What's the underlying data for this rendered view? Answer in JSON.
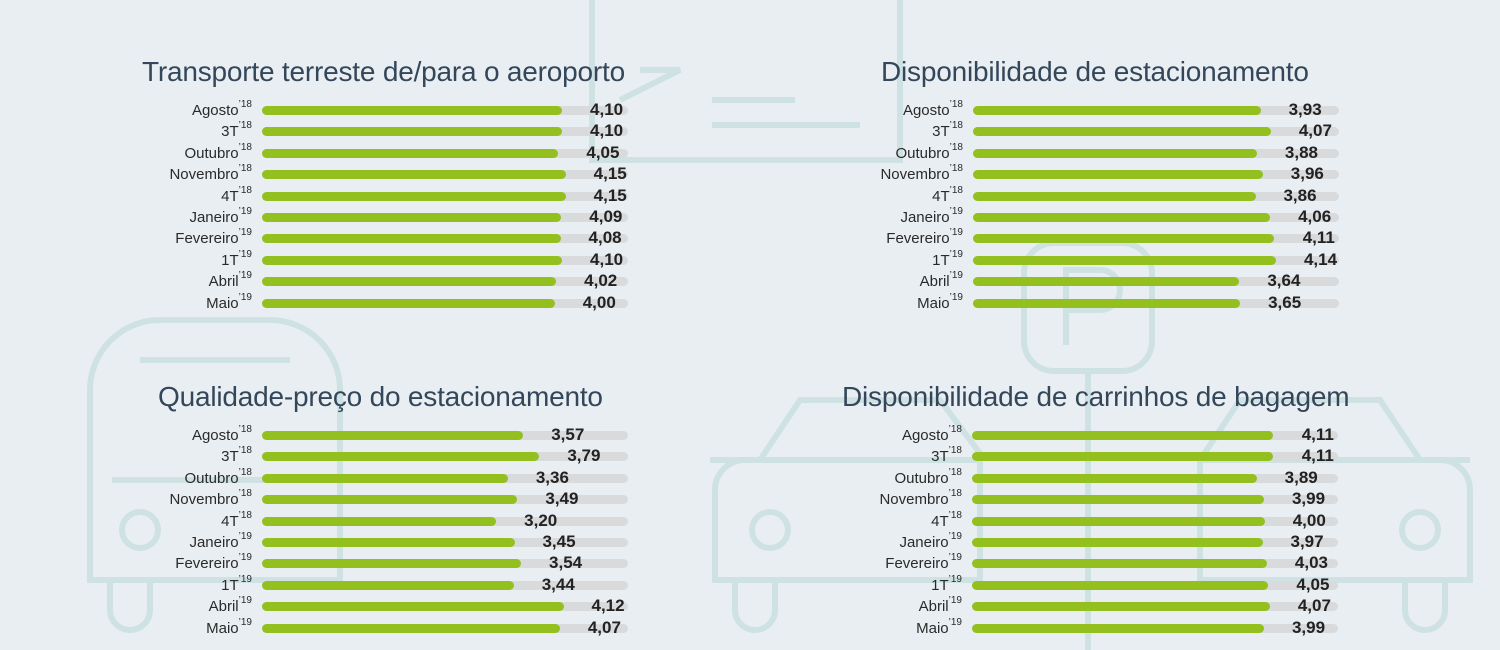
{
  "scale_max": 5,
  "colors": {
    "bar": "#93c01f",
    "track": "#d9dadb",
    "background": "#e9eef2",
    "title": "#34475a",
    "icon_outline": "#cfe2e3"
  },
  "background_icons": [
    "ticket-plane-icon",
    "parking-sign-icon",
    "car-icon",
    "car-icon",
    "car-icon",
    "bus-icon"
  ],
  "chart_data": [
    {
      "type": "bar",
      "title": "Transporte terreste de/para o aeroporto",
      "categories": [
        [
          "Agosto",
          "’18"
        ],
        [
          "3T",
          "’18"
        ],
        [
          "Outubro",
          "’18"
        ],
        [
          "Novembro",
          "’18"
        ],
        [
          "4T",
          "’18"
        ],
        [
          "Janeiro",
          "’19"
        ],
        [
          "Fevereiro",
          "’19"
        ],
        [
          "1T",
          "’19"
        ],
        [
          "Abril",
          "’19"
        ],
        [
          "Maio",
          "’19"
        ]
      ],
      "values": [
        "4,10",
        "4,10",
        "4,05",
        "4,15",
        "4,15",
        "4,09",
        "4,08",
        "4,10",
        "4,02",
        "4,00"
      ],
      "xlim": [
        0,
        5
      ]
    },
    {
      "type": "bar",
      "title": "Disponibilidade de estacionamento",
      "categories": [
        [
          "Agosto",
          "’18"
        ],
        [
          "3T",
          "’18"
        ],
        [
          "Outubro",
          "’18"
        ],
        [
          "Novembro",
          "’18"
        ],
        [
          "4T",
          "’18"
        ],
        [
          "Janeiro",
          "’19"
        ],
        [
          "Fevereiro",
          "’19"
        ],
        [
          "1T",
          "’19"
        ],
        [
          "Abril",
          "’19"
        ],
        [
          "Maio",
          "’19"
        ]
      ],
      "values": [
        "3,93",
        "4,07",
        "3,88",
        "3,96",
        "3,86",
        "4,06",
        "4,11",
        "4,14",
        "3,64",
        "3,65"
      ],
      "xlim": [
        0,
        5
      ]
    },
    {
      "type": "bar",
      "title": "Qualidade-preço do estacionamento",
      "categories": [
        [
          "Agosto",
          "’18"
        ],
        [
          "3T",
          "’18"
        ],
        [
          "Outubro",
          "’18"
        ],
        [
          "Novembro",
          "’18"
        ],
        [
          "4T",
          "’18"
        ],
        [
          "Janeiro",
          "’19"
        ],
        [
          "Fevereiro",
          "’19"
        ],
        [
          "1T",
          "’19"
        ],
        [
          "Abril",
          "’19"
        ],
        [
          "Maio",
          "’19"
        ]
      ],
      "values": [
        "3,57",
        "3,79",
        "3,36",
        "3,49",
        "3,20",
        "3,45",
        "3,54",
        "3,44",
        "4,12",
        "4,07"
      ],
      "xlim": [
        0,
        5
      ]
    },
    {
      "type": "bar",
      "title": "Disponibilidade de carrinhos de bagagem",
      "categories": [
        [
          "Agosto",
          "’18"
        ],
        [
          "3T",
          "’18"
        ],
        [
          "Outubro",
          "’18"
        ],
        [
          "Novembro",
          "’18"
        ],
        [
          "4T",
          "’18"
        ],
        [
          "Janeiro",
          "’19"
        ],
        [
          "Fevereiro",
          "’19"
        ],
        [
          "1T",
          "’19"
        ],
        [
          "Abril",
          "’19"
        ],
        [
          "Maio",
          "’19"
        ]
      ],
      "values": [
        "4,11",
        "4,11",
        "3,89",
        "3,99",
        "4,00",
        "3,97",
        "4,03",
        "4,05",
        "4,07",
        "3,99"
      ],
      "xlim": [
        0,
        5
      ]
    }
  ]
}
